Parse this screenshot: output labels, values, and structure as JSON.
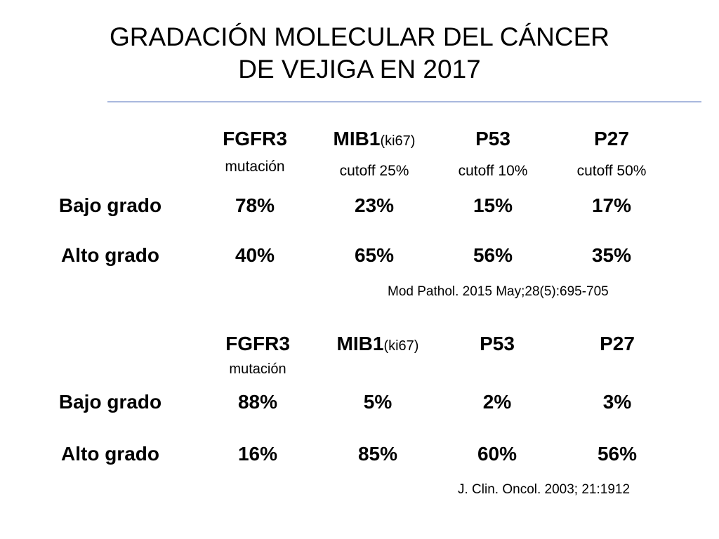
{
  "title": {
    "line1": "GRADACIÓN MOLECULAR DEL CÁNCER",
    "line2": "DE VEJIGA EN 2017"
  },
  "table1": {
    "columns": [
      {
        "name": "FGFR3",
        "suffix": "",
        "sub": "mutación"
      },
      {
        "name": "MIB1",
        "suffix": "(ki67)",
        "sub": "cutoff 25%"
      },
      {
        "name": "P53",
        "suffix": "",
        "sub": "cutoff 10%"
      },
      {
        "name": "P27",
        "suffix": "",
        "sub": "cutoff 50%"
      }
    ],
    "rows": [
      {
        "label": "Bajo grado",
        "values": [
          "78%",
          "23%",
          "15%",
          "17%"
        ]
      },
      {
        "label": "Alto grado",
        "values": [
          "40%",
          "65%",
          "56%",
          "35%"
        ]
      }
    ],
    "citation": "Mod Pathol. 2015 May;28(5):695-705"
  },
  "table2": {
    "columns": [
      {
        "name": "FGFR3",
        "suffix": "",
        "sub": "mutación"
      },
      {
        "name": "MIB1",
        "suffix": "(ki67)",
        "sub": ""
      },
      {
        "name": "P53",
        "suffix": "",
        "sub": ""
      },
      {
        "name": "P27",
        "suffix": "",
        "sub": ""
      }
    ],
    "rows": [
      {
        "label": "Bajo grado",
        "values": [
          "88%",
          "5%",
          "2%",
          "3%"
        ]
      },
      {
        "label": "Alto grado",
        "values": [
          "16%",
          "85%",
          "60%",
          "56%"
        ]
      }
    ],
    "citation": "J. Clin. Oncol. 2003; 21:1912"
  },
  "colors": {
    "rule": "#a9b8de",
    "text": "#000000",
    "background": "#ffffff"
  }
}
